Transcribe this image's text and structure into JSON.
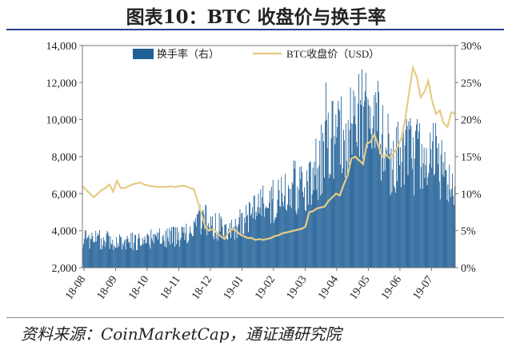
{
  "figure": {
    "title": "图表10：BTC 收盘价与换手率",
    "source": "资料来源：CoinMarketCap，通证通研究院"
  },
  "chart_data": {
    "type": "bar+line",
    "categories": [
      "18-08",
      "18-09",
      "18-10",
      "18-11",
      "18-12",
      "19-01",
      "19-02",
      "19-03",
      "19-04",
      "19-05",
      "19-06",
      "19-07"
    ],
    "y_left": {
      "ticks": [
        "2,000",
        "4,000",
        "6,000",
        "8,000",
        "10,000",
        "12,000",
        "14,000"
      ],
      "range": [
        2000,
        14000
      ]
    },
    "y_right": {
      "ticks": [
        "0%",
        "5%",
        "10%",
        "15%",
        "20%",
        "25%",
        "30%"
      ],
      "range": [
        0,
        30
      ]
    },
    "legend": {
      "placement": "top",
      "bars_label": "换手率（右）",
      "line_label": "BTC收盘价（USD）"
    },
    "colors": {
      "bars": "#1f5f96",
      "line": "#e6cc85",
      "axis": "#555555"
    },
    "series": [
      {
        "name": "BTC收盘价（USD）",
        "axis": "left",
        "type": "line",
        "points": [
          [
            0,
            6400
          ],
          [
            5,
            6200
          ],
          [
            10,
            6000
          ],
          [
            15,
            5800
          ],
          [
            20,
            6000
          ],
          [
            25,
            6200
          ],
          [
            30,
            6300
          ],
          [
            35,
            6500
          ],
          [
            40,
            6100
          ],
          [
            45,
            6700
          ],
          [
            50,
            6300
          ],
          [
            55,
            6300
          ],
          [
            60,
            6400
          ],
          [
            65,
            6500
          ],
          [
            70,
            6550
          ],
          [
            75,
            6600
          ],
          [
            80,
            6500
          ],
          [
            85,
            6450
          ],
          [
            90,
            6400
          ],
          [
            95,
            6380
          ],
          [
            100,
            6350
          ],
          [
            105,
            6380
          ],
          [
            110,
            6350
          ],
          [
            115,
            6400
          ],
          [
            120,
            6350
          ],
          [
            125,
            6400
          ],
          [
            130,
            6420
          ],
          [
            135,
            6400
          ],
          [
            140,
            6300
          ],
          [
            145,
            6250
          ],
          [
            150,
            5600
          ],
          [
            155,
            4900
          ],
          [
            160,
            4200
          ],
          [
            165,
            4000
          ],
          [
            170,
            4100
          ],
          [
            175,
            3900
          ],
          [
            180,
            3700
          ],
          [
            185,
            3550
          ],
          [
            190,
            3900
          ],
          [
            195,
            4100
          ],
          [
            200,
            4000
          ],
          [
            205,
            3800
          ],
          [
            210,
            3700
          ],
          [
            215,
            3600
          ],
          [
            220,
            3600
          ],
          [
            225,
            3500
          ],
          [
            230,
            3550
          ],
          [
            235,
            3500
          ],
          [
            240,
            3550
          ],
          [
            245,
            3600
          ],
          [
            250,
            3700
          ],
          [
            255,
            3750
          ],
          [
            260,
            3850
          ],
          [
            265,
            3900
          ],
          [
            270,
            3950
          ],
          [
            275,
            4000
          ],
          [
            280,
            4050
          ],
          [
            285,
            4100
          ],
          [
            290,
            4200
          ],
          [
            295,
            5000
          ],
          [
            300,
            5050
          ],
          [
            305,
            5200
          ],
          [
            310,
            5250
          ],
          [
            315,
            5300
          ],
          [
            320,
            5600
          ],
          [
            325,
            5800
          ],
          [
            330,
            6000
          ],
          [
            335,
            5900
          ],
          [
            340,
            6500
          ],
          [
            345,
            7000
          ],
          [
            350,
            7900
          ],
          [
            355,
            8000
          ],
          [
            360,
            7800
          ],
          [
            365,
            7600
          ],
          [
            370,
            8700
          ],
          [
            375,
            8800
          ],
          [
            380,
            9200
          ],
          [
            385,
            8600
          ],
          [
            390,
            8000
          ],
          [
            395,
            8100
          ],
          [
            400,
            7900
          ],
          [
            405,
            8200
          ],
          [
            410,
            8500
          ],
          [
            415,
            9000
          ],
          [
            420,
            10000
          ],
          [
            425,
            11500
          ],
          [
            430,
            12800
          ],
          [
            435,
            12300
          ],
          [
            440,
            11200
          ],
          [
            445,
            11500
          ],
          [
            450,
            12100
          ],
          [
            455,
            11000
          ],
          [
            460,
            10300
          ],
          [
            465,
            10500
          ],
          [
            470,
            9800
          ],
          [
            475,
            9600
          ],
          [
            480,
            10400
          ],
          [
            485,
            10300
          ]
        ]
      },
      {
        "name": "换手率（右）",
        "axis": "right",
        "type": "bar",
        "anchor_points": [
          [
            0,
            4
          ],
          [
            60,
            3.5
          ],
          [
            140,
            4.5
          ],
          [
            150,
            7
          ],
          [
            175,
            5.5
          ],
          [
            200,
            5.5
          ],
          [
            230,
            8
          ],
          [
            260,
            10
          ],
          [
            300,
            12
          ],
          [
            320,
            17
          ],
          [
            345,
            18
          ],
          [
            360,
            21
          ],
          [
            380,
            20
          ],
          [
            400,
            15
          ],
          [
            430,
            15
          ],
          [
            460,
            15
          ],
          [
            485,
            9
          ]
        ],
        "peaks": [
          [
            317,
            25
          ],
          [
            363,
            22
          ],
          [
            332,
            19
          ]
        ]
      }
    ]
  }
}
